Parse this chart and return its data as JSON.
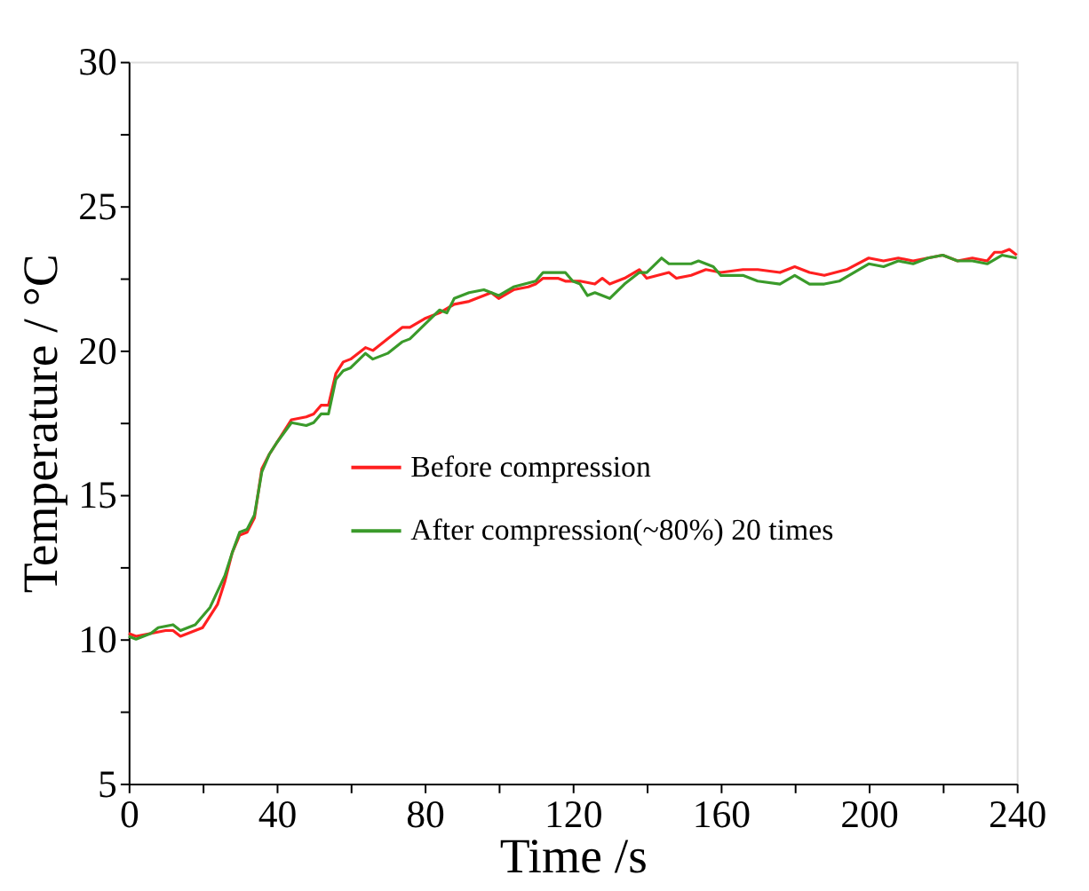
{
  "chart_data": {
    "type": "line",
    "xlabel": "Time /s",
    "ylabel": "Temperature / °C",
    "xlim": [
      0,
      240
    ],
    "ylim": [
      5,
      30
    ],
    "xticks": [
      0,
      {
        "value": 20,
        "label": null
      },
      40,
      {
        "value": 60,
        "label": null
      },
      80,
      {
        "value": 100,
        "label": null
      },
      120,
      {
        "value": 140,
        "label": null
      },
      160,
      {
        "value": 180,
        "label": null
      },
      200,
      {
        "value": 220,
        "label": null
      },
      240
    ],
    "yticks": [
      5,
      {
        "value": 7.5,
        "label": null
      },
      10,
      {
        "value": 12.5,
        "label": null
      },
      15,
      {
        "value": 17.5,
        "label": null
      },
      20,
      {
        "value": 22.5,
        "label": null
      },
      25,
      {
        "value": 27.5,
        "label": null
      },
      30
    ],
    "grid": false,
    "legend": "right",
    "line_style": "solid",
    "series": [
      {
        "name": "Before compression",
        "color": "#ff2020",
        "x": [
          0,
          2,
          6,
          10,
          12,
          14,
          18,
          20,
          24,
          26,
          28,
          30,
          32,
          34,
          36,
          38,
          40,
          44,
          48,
          50,
          52,
          54,
          56,
          58,
          60,
          62,
          64,
          66,
          70,
          72,
          74,
          76,
          80,
          84,
          88,
          92,
          96,
          98,
          100,
          104,
          108,
          110,
          112,
          116,
          118,
          122,
          126,
          128,
          130,
          134,
          138,
          140,
          146,
          148,
          152,
          156,
          160,
          166,
          170,
          176,
          180,
          184,
          188,
          194,
          200,
          204,
          208,
          212,
          216,
          220,
          224,
          228,
          232,
          234,
          236,
          238,
          240
        ],
        "values": [
          10.2,
          10.1,
          10.2,
          10.3,
          10.3,
          10.1,
          10.3,
          10.4,
          11.2,
          12.0,
          13.0,
          13.6,
          13.7,
          14.2,
          15.9,
          16.4,
          16.8,
          17.6,
          17.7,
          17.8,
          18.1,
          18.1,
          19.2,
          19.6,
          19.7,
          19.9,
          20.1,
          20.0,
          20.4,
          20.6,
          20.8,
          20.8,
          21.1,
          21.3,
          21.6,
          21.7,
          21.9,
          22.0,
          21.8,
          22.1,
          22.2,
          22.3,
          22.5,
          22.5,
          22.4,
          22.4,
          22.3,
          22.5,
          22.3,
          22.5,
          22.8,
          22.5,
          22.7,
          22.5,
          22.6,
          22.8,
          22.7,
          22.8,
          22.8,
          22.7,
          22.9,
          22.7,
          22.6,
          22.8,
          23.2,
          23.1,
          23.2,
          23.1,
          23.2,
          23.3,
          23.1,
          23.2,
          23.1,
          23.4,
          23.4,
          23.5,
          23.3
        ]
      },
      {
        "name": "After compression(~80%) 20 times",
        "color": "#3a9a2a",
        "x": [
          0,
          2,
          6,
          8,
          12,
          14,
          18,
          22,
          26,
          28,
          30,
          32,
          34,
          36,
          38,
          40,
          44,
          48,
          50,
          52,
          54,
          56,
          58,
          60,
          64,
          66,
          70,
          74,
          76,
          80,
          84,
          86,
          88,
          92,
          96,
          100,
          104,
          110,
          112,
          118,
          120,
          122,
          124,
          126,
          130,
          134,
          138,
          140,
          144,
          146,
          152,
          154,
          158,
          160,
          166,
          170,
          176,
          180,
          184,
          188,
          192,
          196,
          200,
          204,
          208,
          212,
          216,
          220,
          224,
          228,
          232,
          236,
          240
        ],
        "values": [
          10.1,
          10.0,
          10.2,
          10.4,
          10.5,
          10.3,
          10.5,
          11.1,
          12.2,
          13.0,
          13.7,
          13.8,
          14.3,
          15.8,
          16.4,
          16.8,
          17.5,
          17.4,
          17.5,
          17.8,
          17.8,
          19.0,
          19.3,
          19.4,
          19.9,
          19.7,
          19.9,
          20.3,
          20.4,
          20.9,
          21.4,
          21.3,
          21.8,
          22.0,
          22.1,
          21.9,
          22.2,
          22.4,
          22.7,
          22.7,
          22.4,
          22.3,
          21.9,
          22.0,
          21.8,
          22.3,
          22.7,
          22.7,
          23.2,
          23.0,
          23.0,
          23.1,
          22.9,
          22.6,
          22.6,
          22.4,
          22.3,
          22.6,
          22.3,
          22.3,
          22.4,
          22.7,
          23.0,
          22.9,
          23.1,
          23.0,
          23.2,
          23.3,
          23.1,
          23.1,
          23.0,
          23.3,
          23.2
        ]
      }
    ]
  }
}
